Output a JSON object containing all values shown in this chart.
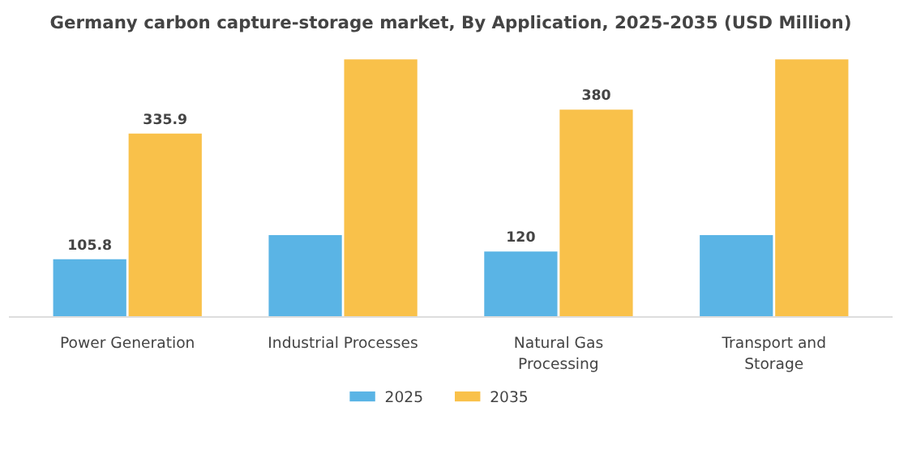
{
  "chart_data": {
    "type": "bar",
    "title": "Germany carbon capture-storage market, By Application, 2025-2035 (USD Million)",
    "categories": [
      "Power Generation",
      "Industrial Processes",
      "Natural Gas Processing",
      "Transport and Storage"
    ],
    "series": [
      {
        "name": "2025",
        "color": "#5ab4e5",
        "values": [
          105.8,
          150,
          120,
          150
        ],
        "value_labels": [
          "105.8",
          null,
          "120",
          null
        ]
      },
      {
        "name": "2035",
        "color": "#f9c14a",
        "values": [
          335.9,
          472,
          380,
          472
        ],
        "value_labels": [
          "335.9",
          null,
          "380",
          null
        ]
      }
    ],
    "legend": "bottom"
  }
}
